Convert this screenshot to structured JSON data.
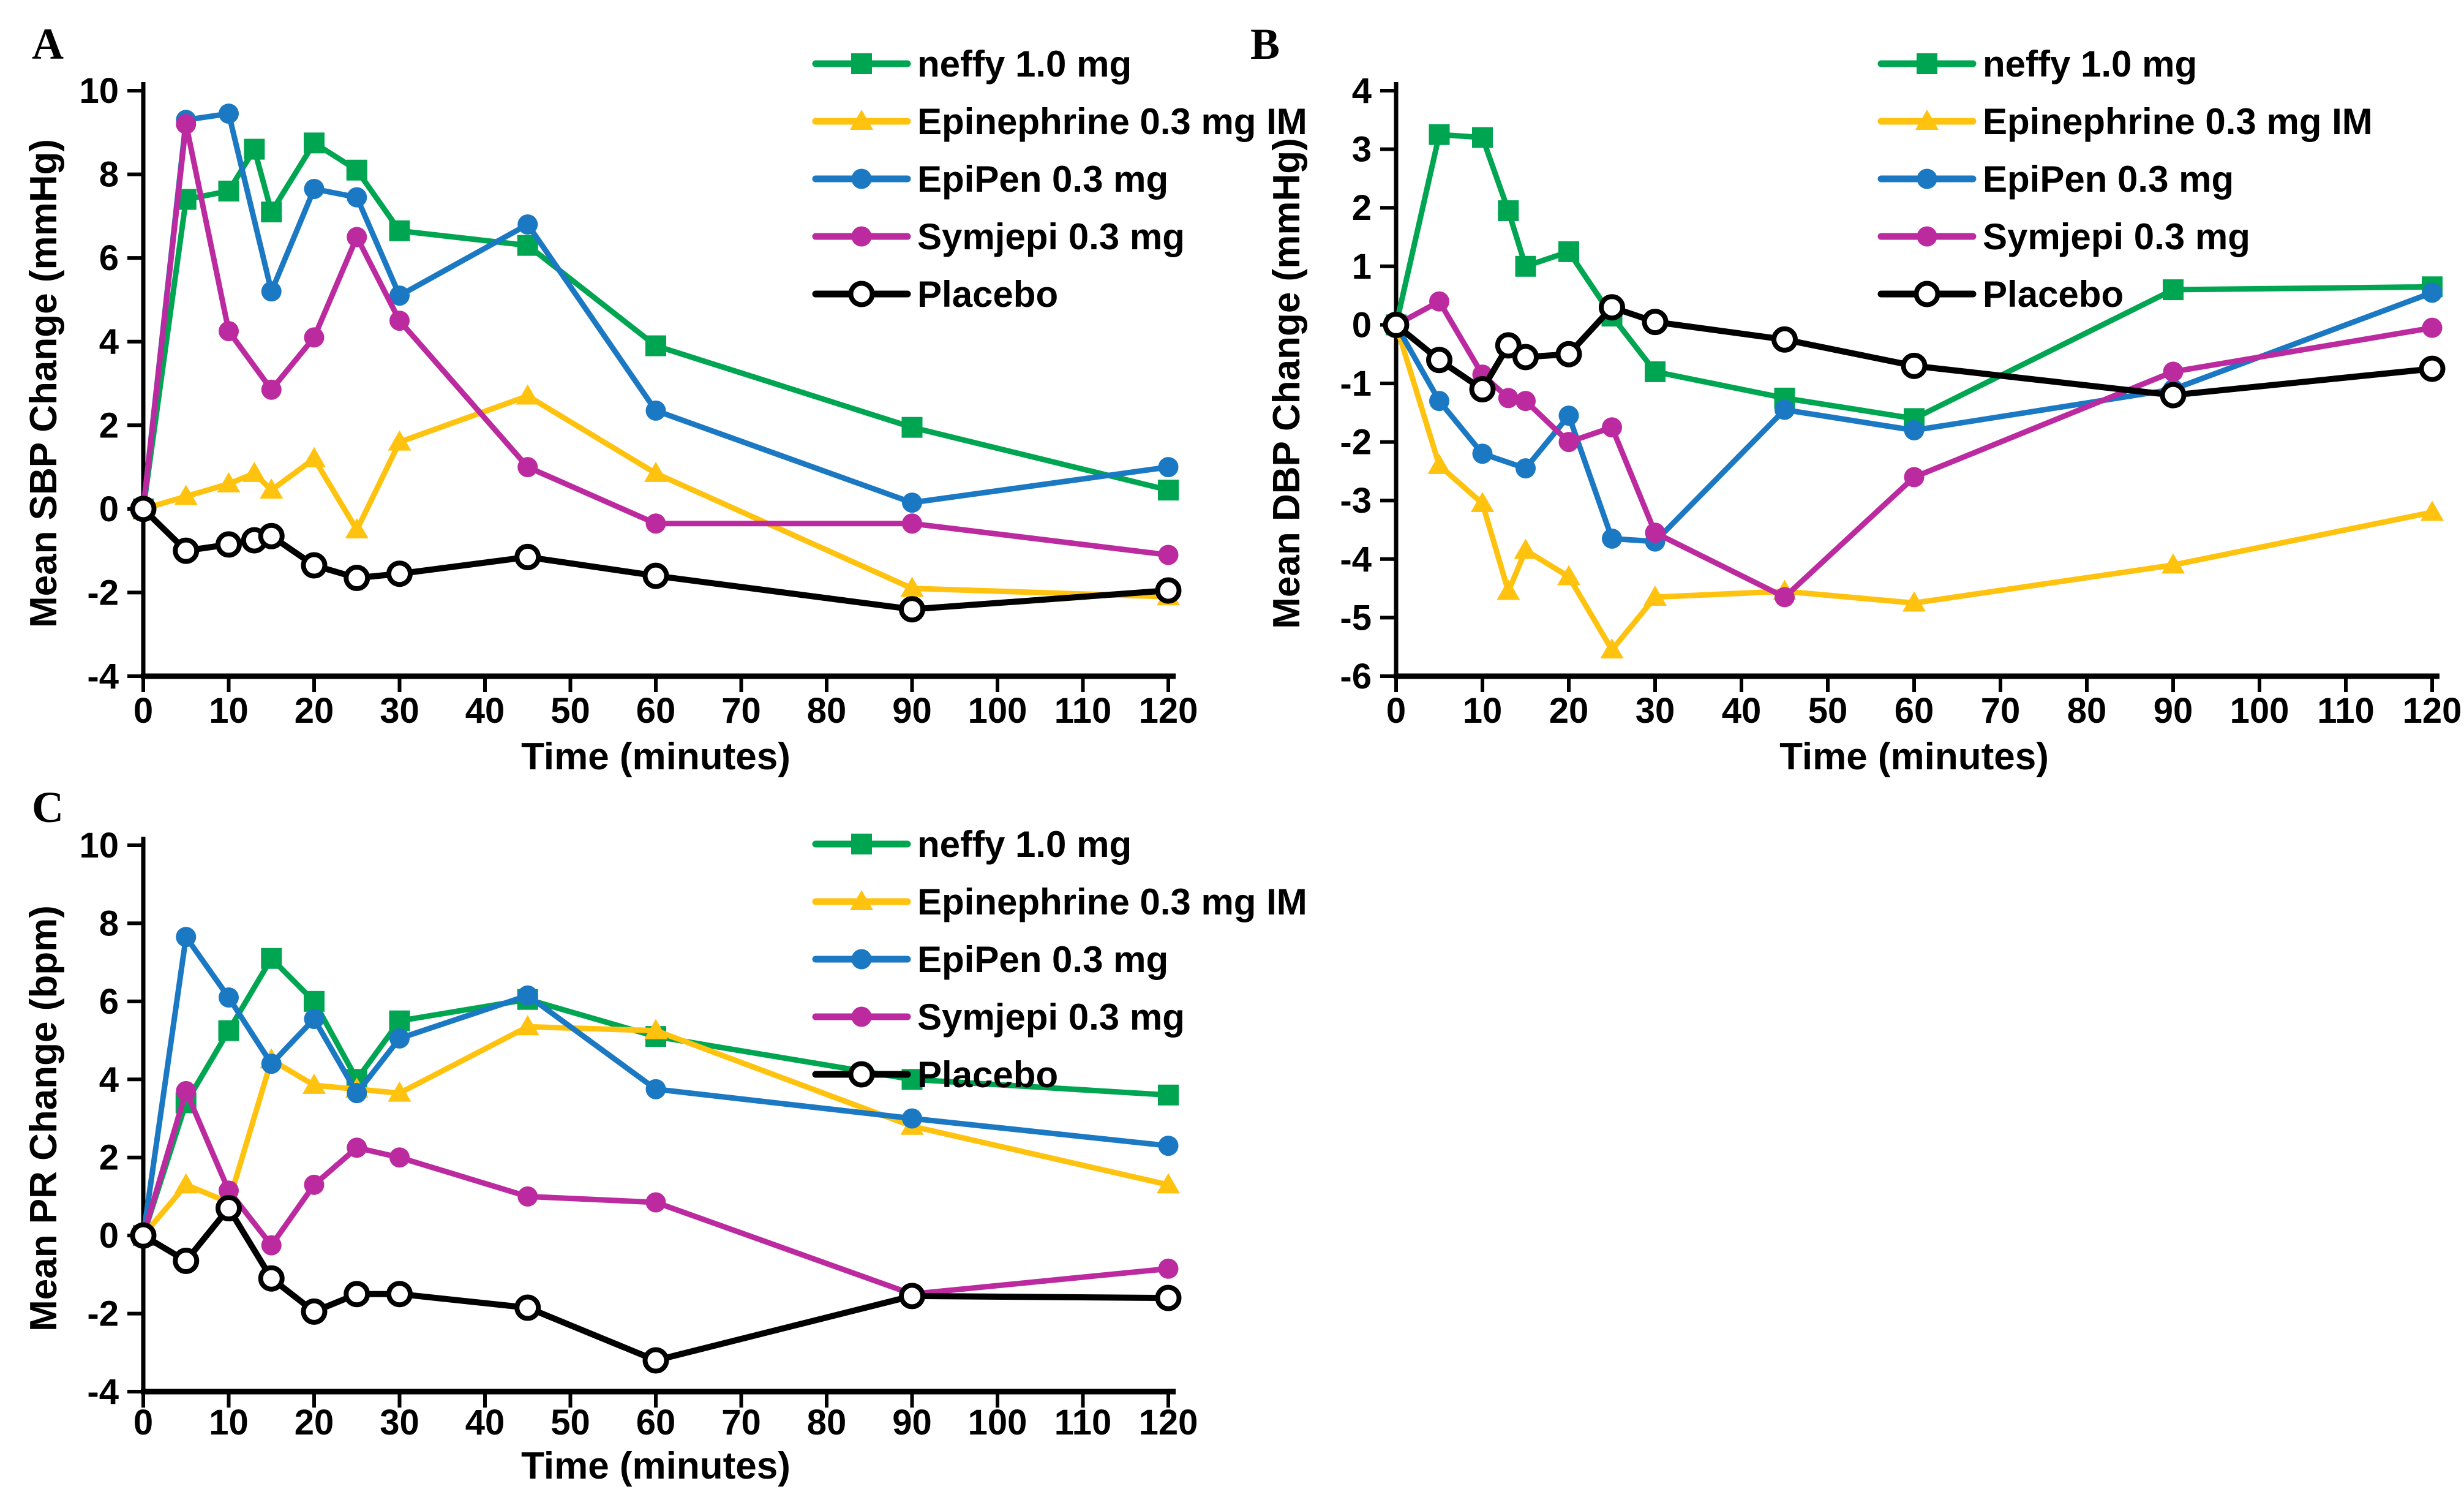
{
  "figure_background": "#ffffff",
  "text_color": "#000000",
  "xlabel_shared": "Time (minutes)",
  "chart_data": [
    {
      "panel_label": "A",
      "type": "line",
      "title": "",
      "xlabel": "Time (minutes)",
      "ylabel": "Mean SBP Change (mmHg)",
      "xlim": [
        0,
        120
      ],
      "ylim": [
        -4,
        10
      ],
      "xticks": [
        0,
        10,
        20,
        30,
        40,
        50,
        60,
        70,
        80,
        90,
        100,
        110,
        120
      ],
      "yticks": [
        10,
        8,
        6,
        4,
        2,
        0,
        -2,
        -4
      ],
      "grid": false,
      "legend_position": "top-right",
      "series": [
        {
          "name": "neffy 1.0 mg",
          "color": "#00A551",
          "marker": "square",
          "points": [
            [
              0,
              0
            ],
            [
              5,
              7.4
            ],
            [
              10,
              7.6
            ],
            [
              13,
              8.6
            ],
            [
              15,
              7.1
            ],
            [
              20,
              8.75
            ],
            [
              25,
              8.1
            ],
            [
              30,
              6.65
            ],
            [
              45,
              6.3
            ],
            [
              60,
              3.9
            ],
            [
              90,
              1.95
            ],
            [
              120,
              0.45
            ]
          ]
        },
        {
          "name": "Epinephrine 0.3 mg IM",
          "color": "#FFC20E",
          "marker": "triangle",
          "points": [
            [
              0,
              0
            ],
            [
              5,
              0.3
            ],
            [
              10,
              0.6
            ],
            [
              13,
              0.85
            ],
            [
              15,
              0.45
            ],
            [
              20,
              1.2
            ],
            [
              25,
              -0.5
            ],
            [
              30,
              1.6
            ],
            [
              45,
              2.7
            ],
            [
              60,
              0.85
            ],
            [
              90,
              -1.9
            ],
            [
              120,
              -2.1
            ]
          ]
        },
        {
          "name": "EpiPen 0.3 mg",
          "color": "#1B78C2",
          "marker": "circle",
          "points": [
            [
              0,
              0
            ],
            [
              5,
              9.3
            ],
            [
              10,
              9.45
            ],
            [
              15,
              5.2
            ],
            [
              20,
              7.65
            ],
            [
              25,
              7.45
            ],
            [
              30,
              5.1
            ],
            [
              45,
              6.8
            ],
            [
              60,
              2.35
            ],
            [
              90,
              0.15
            ],
            [
              120,
              1.0
            ]
          ]
        },
        {
          "name": "Symjepi 0.3 mg",
          "color": "#BC2AA0",
          "marker": "circle",
          "points": [
            [
              0,
              0
            ],
            [
              5,
              9.2
            ],
            [
              10,
              4.25
            ],
            [
              15,
              2.85
            ],
            [
              20,
              4.1
            ],
            [
              25,
              6.5
            ],
            [
              30,
              4.5
            ],
            [
              45,
              1.0
            ],
            [
              60,
              -0.35
            ],
            [
              90,
              -0.35
            ],
            [
              120,
              -1.1
            ]
          ]
        },
        {
          "name": "Placebo",
          "color": "#000000",
          "marker": "open-circle",
          "points": [
            [
              0,
              0
            ],
            [
              5,
              -1.0
            ],
            [
              10,
              -0.85
            ],
            [
              13,
              -0.75
            ],
            [
              15,
              -0.65
            ],
            [
              20,
              -1.35
            ],
            [
              25,
              -1.65
            ],
            [
              30,
              -1.55
            ],
            [
              45,
              -1.15
            ],
            [
              60,
              -1.6
            ],
            [
              90,
              -2.4
            ],
            [
              120,
              -1.95
            ]
          ]
        }
      ]
    },
    {
      "panel_label": "B",
      "type": "line",
      "title": "",
      "xlabel": "Time (minutes)",
      "ylabel": "Mean DBP Change (mmHg)",
      "xlim": [
        0,
        120
      ],
      "ylim": [
        -6,
        4
      ],
      "xticks": [
        0,
        10,
        20,
        30,
        40,
        50,
        60,
        70,
        80,
        90,
        100,
        110,
        120
      ],
      "yticks": [
        4,
        3,
        2,
        1,
        0,
        -1,
        -2,
        -3,
        -4,
        -5,
        -6
      ],
      "grid": false,
      "legend_position": "top-right",
      "series": [
        {
          "name": "neffy 1.0 mg",
          "color": "#00A551",
          "marker": "square",
          "points": [
            [
              0,
              0
            ],
            [
              5,
              3.25
            ],
            [
              10,
              3.2
            ],
            [
              13,
              1.95
            ],
            [
              15,
              1.0
            ],
            [
              20,
              1.25
            ],
            [
              25,
              0.15
            ],
            [
              30,
              -0.8
            ],
            [
              45,
              -1.25
            ],
            [
              60,
              -1.6
            ],
            [
              90,
              0.6
            ],
            [
              120,
              0.65
            ]
          ]
        },
        {
          "name": "Epinephrine 0.3 mg IM",
          "color": "#FFC20E",
          "marker": "triangle",
          "points": [
            [
              0,
              0
            ],
            [
              5,
              -2.4
            ],
            [
              10,
              -3.05
            ],
            [
              13,
              -4.55
            ],
            [
              15,
              -3.85
            ],
            [
              20,
              -4.3
            ],
            [
              25,
              -5.55
            ],
            [
              30,
              -4.65
            ],
            [
              45,
              -4.55
            ],
            [
              60,
              -4.75
            ],
            [
              90,
              -4.1
            ],
            [
              120,
              -3.2
            ]
          ]
        },
        {
          "name": "EpiPen 0.3 mg",
          "color": "#1B78C2",
          "marker": "circle",
          "points": [
            [
              0,
              0
            ],
            [
              5,
              -1.3
            ],
            [
              10,
              -2.2
            ],
            [
              15,
              -2.45
            ],
            [
              20,
              -1.55
            ],
            [
              25,
              -3.65
            ],
            [
              30,
              -3.7
            ],
            [
              45,
              -1.45
            ],
            [
              60,
              -1.8
            ],
            [
              90,
              -1.1
            ],
            [
              120,
              0.55
            ]
          ]
        },
        {
          "name": "Symjepi 0.3 mg",
          "color": "#BC2AA0",
          "marker": "circle",
          "points": [
            [
              0,
              0
            ],
            [
              5,
              0.4
            ],
            [
              10,
              -0.85
            ],
            [
              13,
              -1.25
            ],
            [
              15,
              -1.3
            ],
            [
              20,
              -2.0
            ],
            [
              25,
              -1.75
            ],
            [
              30,
              -3.55
            ],
            [
              45,
              -4.65
            ],
            [
              60,
              -2.6
            ],
            [
              90,
              -0.8
            ],
            [
              120,
              -0.05
            ]
          ]
        },
        {
          "name": "Placebo",
          "color": "#000000",
          "marker": "open-circle",
          "points": [
            [
              0,
              0
            ],
            [
              5,
              -0.6
            ],
            [
              10,
              -1.1
            ],
            [
              13,
              -0.35
            ],
            [
              15,
              -0.55
            ],
            [
              20,
              -0.5
            ],
            [
              25,
              0.3
            ],
            [
              30,
              0.05
            ],
            [
              45,
              -0.25
            ],
            [
              60,
              -0.7
            ],
            [
              90,
              -1.2
            ],
            [
              120,
              -0.75
            ]
          ]
        }
      ]
    },
    {
      "panel_label": "C",
      "type": "line",
      "title": "",
      "xlabel": "Time (minutes)",
      "ylabel": "Mean PR Change (bpm)",
      "xlim": [
        0,
        120
      ],
      "ylim": [
        -4,
        10
      ],
      "xticks": [
        0,
        10,
        20,
        30,
        40,
        50,
        60,
        70,
        80,
        90,
        100,
        110,
        120
      ],
      "yticks": [
        10,
        8,
        6,
        4,
        2,
        0,
        -2,
        -4
      ],
      "grid": false,
      "legend_position": "top-right",
      "series": [
        {
          "name": "neffy 1.0 mg",
          "color": "#00A551",
          "marker": "square",
          "points": [
            [
              0,
              0
            ],
            [
              5,
              3.4
            ],
            [
              10,
              5.25
            ],
            [
              15,
              7.1
            ],
            [
              20,
              6.0
            ],
            [
              25,
              4.0
            ],
            [
              30,
              5.5
            ],
            [
              45,
              6.05
            ],
            [
              60,
              5.1
            ],
            [
              90,
              4.0
            ],
            [
              120,
              3.6
            ]
          ]
        },
        {
          "name": "Epinephrine 0.3 mg IM",
          "color": "#FFC20E",
          "marker": "triangle",
          "points": [
            [
              0,
              0
            ],
            [
              5,
              1.3
            ],
            [
              10,
              0.85
            ],
            [
              15,
              4.5
            ],
            [
              20,
              3.85
            ],
            [
              25,
              3.75
            ],
            [
              30,
              3.65
            ],
            [
              45,
              5.35
            ],
            [
              60,
              5.25
            ],
            [
              90,
              2.8
            ],
            [
              120,
              1.3
            ]
          ]
        },
        {
          "name": "EpiPen 0.3 mg",
          "color": "#1B78C2",
          "marker": "circle",
          "points": [
            [
              0,
              0
            ],
            [
              5,
              7.65
            ],
            [
              10,
              6.1
            ],
            [
              15,
              4.4
            ],
            [
              20,
              5.55
            ],
            [
              25,
              3.65
            ],
            [
              30,
              5.05
            ],
            [
              45,
              6.15
            ],
            [
              60,
              3.75
            ],
            [
              90,
              3.0
            ],
            [
              120,
              2.3
            ]
          ]
        },
        {
          "name": "Symjepi 0.3 mg",
          "color": "#BC2AA0",
          "marker": "circle",
          "points": [
            [
              0,
              0
            ],
            [
              5,
              3.7
            ],
            [
              10,
              1.15
            ],
            [
              15,
              -0.25
            ],
            [
              20,
              1.3
            ],
            [
              25,
              2.25
            ],
            [
              30,
              2.0
            ],
            [
              45,
              1.0
            ],
            [
              60,
              0.85
            ],
            [
              90,
              -1.5
            ],
            [
              120,
              -0.85
            ]
          ]
        },
        {
          "name": "Placebo",
          "color": "#000000",
          "marker": "open-circle",
          "points": [
            [
              0,
              0
            ],
            [
              5,
              -0.65
            ],
            [
              10,
              0.7
            ],
            [
              15,
              -1.1
            ],
            [
              20,
              -1.95
            ],
            [
              25,
              -1.5
            ],
            [
              30,
              -1.5
            ],
            [
              45,
              -1.85
            ],
            [
              60,
              -3.2
            ],
            [
              90,
              -1.55
            ],
            [
              120,
              -1.6
            ]
          ]
        }
      ]
    }
  ]
}
